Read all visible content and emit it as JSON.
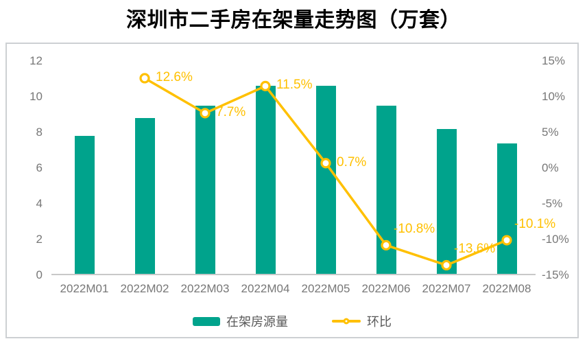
{
  "title": "深圳市二手房在架量走势图（万套）",
  "palette": {
    "bar": "#00A38C",
    "line": "#FFC000",
    "axis_text": "#777777",
    "legend_text": "#595959",
    "axis_line": "#C8C8C8",
    "card_border": "#CDD0D3"
  },
  "chart_data": {
    "type": "combo-bar-line",
    "title": "深圳市二手房在架量走势图（万套）",
    "categories": [
      "2022M01",
      "2022M02",
      "2022M03",
      "2022M04",
      "2022M05",
      "2022M06",
      "2022M07",
      "2022M08"
    ],
    "series": [
      {
        "name": "在架房源量",
        "type": "bar",
        "axis": "left",
        "color": "#00A38C",
        "values": [
          7.8,
          8.8,
          9.5,
          10.6,
          10.6,
          9.5,
          8.2,
          7.4
        ]
      },
      {
        "name": "环比",
        "type": "line",
        "axis": "right",
        "color": "#FFC000",
        "values": [
          null,
          12.6,
          7.7,
          11.5,
          0.7,
          -10.8,
          -13.6,
          -10.1
        ],
        "labels": [
          null,
          "12.6%",
          "7.7%",
          "11.5%",
          "0.7%",
          "-10.8%",
          "-13.6%",
          "-10.1%"
        ]
      }
    ],
    "left_axis": {
      "min": 0,
      "max": 12,
      "ticks": [
        0,
        2,
        4,
        6,
        8,
        10,
        12
      ]
    },
    "right_axis": {
      "min": -15,
      "max": 15,
      "ticks": [
        "15%",
        "10%",
        "5%",
        "0%",
        "-5%",
        "-10%",
        "-15%"
      ]
    },
    "grid": false,
    "legend_position": "bottom-center",
    "legend": [
      {
        "label": "在架房源量",
        "marker": "bar-swatch"
      },
      {
        "label": "环比",
        "marker": "line-with-circle-marker"
      }
    ]
  }
}
